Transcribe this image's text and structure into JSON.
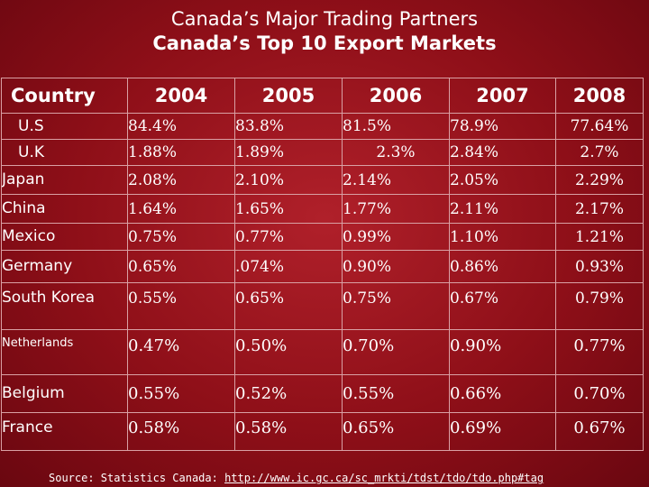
{
  "slide": {
    "title_line1": "Canada’s Major Trading Partners",
    "title_line2": "Canada’s Top 10 Export Markets"
  },
  "table": {
    "headers": [
      "Country",
      "2004",
      "2005",
      "2006",
      "2007",
      "2008"
    ],
    "rows": [
      {
        "country": "U.S",
        "values": [
          "84.4%",
          "83.8%",
          "81.5%",
          "78.9%",
          "77.64%"
        ]
      },
      {
        "country": "U.K",
        "values": [
          "1.88%",
          "1.89%",
          "2.3%",
          "2.84%",
          "2.7%"
        ]
      },
      {
        "country": "Japan",
        "values": [
          "2.08%",
          "2.10%",
          "2.14%",
          "2.05%",
          "2.29%"
        ]
      },
      {
        "country": "China",
        "values": [
          "1.64%",
          "1.65%",
          "1.77%",
          "2.11%",
          "2.17%"
        ]
      },
      {
        "country": "Mexico",
        "values": [
          "0.75%",
          "0.77%",
          "0.99%",
          "1.10%",
          "1.21%"
        ]
      },
      {
        "country": "Germany",
        "values": [
          "0.65%",
          ".074%",
          "0.90%",
          "0.86%",
          "0.93%"
        ]
      },
      {
        "country": "South Korea",
        "values": [
          "0.55%",
          "0.65%",
          "0.75%",
          "0.67%",
          "0.79%"
        ]
      },
      {
        "country": "Netherlands",
        "values": [
          "0.47%",
          "0.50%",
          "0.70%",
          "0.90%",
          "0.77%"
        ]
      },
      {
        "country": "Belgium",
        "values": [
          "0.55%",
          "0.52%",
          "0.55%",
          "0.66%",
          "0.70%"
        ]
      },
      {
        "country": "France",
        "values": [
          "0.58%",
          "0.58%",
          "0.65%",
          "0.69%",
          "0.67%"
        ]
      }
    ]
  },
  "source": {
    "label": "Source:  Statistics Canada:",
    "link": "http://www.ic.gc.ca/sc_mrkti/tdst/tdo/tdo.php#tag"
  }
}
